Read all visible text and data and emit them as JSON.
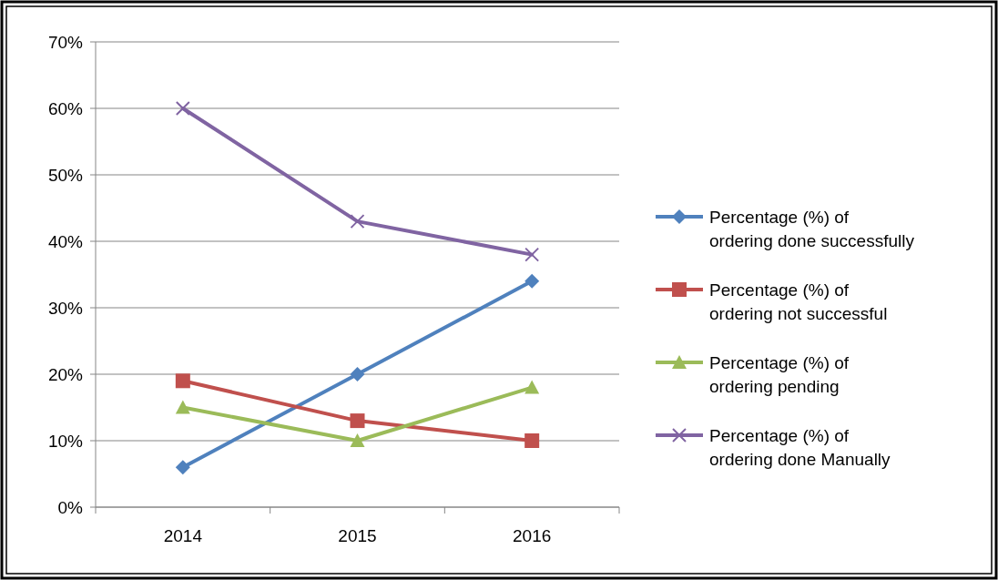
{
  "chart_data": {
    "type": "line",
    "categories": [
      "2014",
      "2015",
      "2016"
    ],
    "series": [
      {
        "name": "Percentage (%) of ordering done successfully",
        "color": "#4f81bd",
        "marker": "diamond",
        "values": [
          6,
          20,
          34
        ]
      },
      {
        "name": "Percentage (%) of ordering not successful",
        "color": "#c0504d",
        "marker": "square",
        "values": [
          19,
          13,
          10
        ]
      },
      {
        "name": "Percentage (%) of ordering pending",
        "color": "#9bbb59",
        "marker": "triangle",
        "values": [
          15,
          10,
          18
        ]
      },
      {
        "name": "Percentage (%) of ordering done Manually",
        "color": "#8064a2",
        "marker": "cross",
        "values": [
          60,
          43,
          38
        ]
      }
    ],
    "ylim": [
      0,
      70
    ],
    "yticks": [
      {
        "value": 0,
        "label": "0%"
      },
      {
        "value": 10,
        "label": "10%"
      },
      {
        "value": 20,
        "label": "20%"
      },
      {
        "value": 30,
        "label": "30%"
      },
      {
        "value": 40,
        "label": "40%"
      },
      {
        "value": 50,
        "label": "50%"
      },
      {
        "value": 60,
        "label": "60%"
      },
      {
        "value": 70,
        "label": "70%"
      }
    ],
    "grid": "y",
    "legend": "right"
  }
}
